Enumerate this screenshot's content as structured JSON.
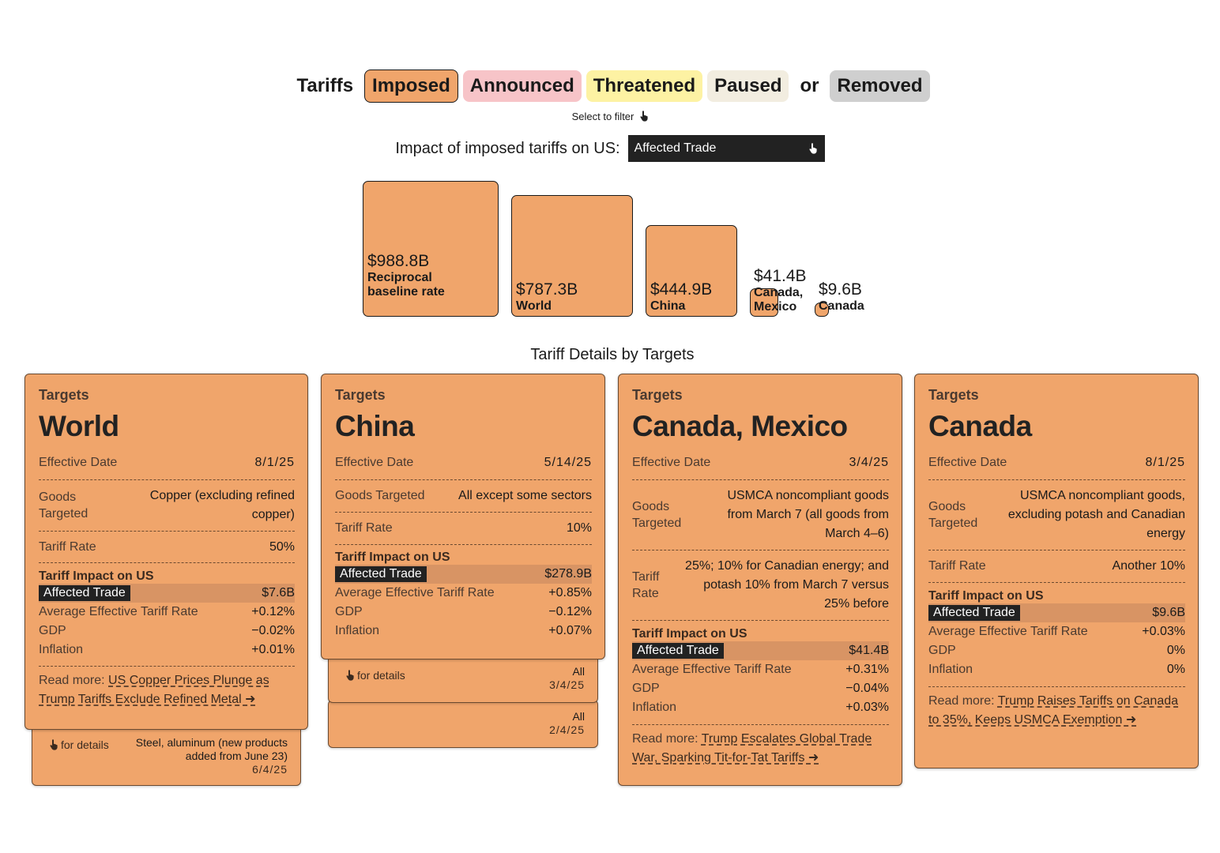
{
  "filters": {
    "lead": "Tariffs",
    "or": "or",
    "chips": [
      "Imposed",
      "Announced",
      "Threatened",
      "Paused",
      "Removed"
    ],
    "hint": "Select to filter"
  },
  "metric": {
    "label": "Impact of imposed tariffs on US:",
    "selected": "Affected Trade"
  },
  "squares": [
    {
      "value": "$988.8B",
      "name": "Reciprocal baseline rate"
    },
    {
      "value": "$787.3B",
      "name": "World"
    },
    {
      "value": "$444.9B",
      "name": "China"
    },
    {
      "value": "$41.4B",
      "name": "Canada, Mexico"
    },
    {
      "value": "$9.6B",
      "name": "Canada"
    }
  ],
  "section_title": "Tariff Details by Targets",
  "labels": {
    "targets": "Targets",
    "effective_date": "Effective Date",
    "goods_targeted": "Goods Targeted",
    "tariff_rate": "Tariff Rate",
    "impact": "Tariff Impact on US",
    "affected_trade": "Affected Trade",
    "avg_rate": "Average Effective Tariff Rate",
    "gdp": "GDP",
    "inflation": "Inflation",
    "read_more": "Read more:",
    "for_details": "for details"
  },
  "cards": [
    {
      "title": "World",
      "date": "8/1/25",
      "goods": "Copper (excluding refined copper)",
      "rate": "50%",
      "affected": "$7.6B",
      "avg": "+0.12%",
      "gdp": "−0.02%",
      "inflation": "+0.01%",
      "read_more": "US Copper Prices Plunge as Trump Tariffs Exclude Refined Metal ➜"
    },
    {
      "title": "China",
      "date": "5/14/25",
      "goods": "All except some sectors",
      "rate": "10%",
      "affected": "$278.9B",
      "avg": "+0.85%",
      "gdp": "−0.12%",
      "inflation": "+0.07%",
      "read_more": ""
    },
    {
      "title": "Canada, Mexico",
      "date": "3/4/25",
      "goods": "USMCA noncompliant goods from March 7 (all goods from March 4–6)",
      "rate": "25%; 10% for Canadian energy; and potash 10% from March 7 versus 25% before",
      "affected": "$41.4B",
      "avg": "+0.31%",
      "gdp": "−0.04%",
      "inflation": "+0.03%",
      "read_more": "Trump Escalates Global Trade War, Sparking Tit-for-Tat Tariffs ➜"
    },
    {
      "title": "Canada",
      "date": "8/1/25",
      "goods": "USMCA noncompliant goods, excluding potash and Canadian energy",
      "rate": "Another 10%",
      "affected": "$9.6B",
      "avg": "+0.03%",
      "gdp": "0%",
      "inflation": "0%",
      "read_more": "Trump Raises Tariffs on Canada to 35%, Keeps USMCA Exemption ➜"
    }
  ],
  "stacked": {
    "world": [
      {
        "goods": "Steel, aluminum (new products added from June 23)",
        "date": "6/4/25"
      }
    ],
    "china": [
      {
        "goods": "All",
        "date": "3/4/25"
      },
      {
        "goods": "All",
        "date": "2/4/25"
      }
    ]
  },
  "colors": {
    "imposed": "#f0a56b",
    "announced": "#f7c4c8",
    "threatened": "#fdf2a3",
    "paused": "#f2ede0",
    "removed": "#cfcfcf"
  }
}
